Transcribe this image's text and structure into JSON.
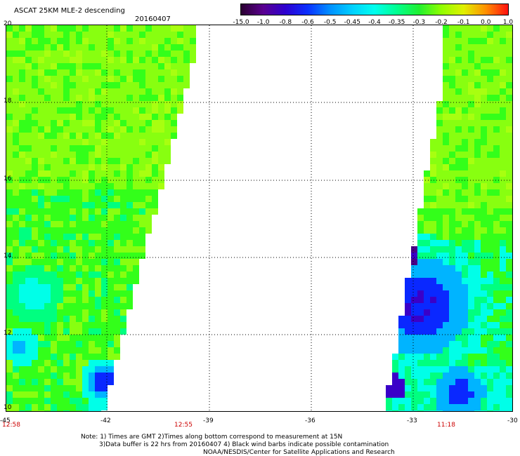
{
  "header": {
    "title": "ASCAT 25KM MLE-2 descending",
    "date": "20160407"
  },
  "colorbar": {
    "ticks": [
      "-15.0",
      "-1.0",
      "-0.8",
      "-0.6",
      "-0.5",
      "-0.45",
      "-0.4",
      "-0.35",
      "-0.3",
      "-0.2",
      "-0.1",
      "0.0",
      "1.0"
    ],
    "colors": [
      "#2a0030",
      "#5a0090",
      "#2d00d0",
      "#0a30ff",
      "#0090ff",
      "#00d0ff",
      "#00ffee",
      "#00ff90",
      "#20f030",
      "#90ff00",
      "#e0f000",
      "#ff9000",
      "#ff1010"
    ]
  },
  "axes": {
    "y_ticks": [
      "20",
      "18",
      "16",
      "14",
      "12",
      "10"
    ],
    "x_ticks": [
      "-45",
      "-42",
      "-39",
      "-36",
      "-33",
      "-30"
    ],
    "lon_range": [
      -45,
      -30
    ],
    "lat_range": [
      10,
      20
    ]
  },
  "swath_times": [
    "12:58",
    "12:55",
    "11:18"
  ],
  "notes": [
    "Note: 1) Times are GMT 2)Times along bottom correspond to measurement at 15N",
    "3)Data buffer is 22 hrs from 20160407 4) Black wind barbs indicate possible contamination",
    "NOAA/NESDIS/Center for Satellite Applications and Research"
  ],
  "palette": {
    "green": "#33ff1a",
    "lime": "#88ff10",
    "mint": "#00ff80",
    "cyan": "#00ffe8",
    "sky": "#00b4ff",
    "blue": "#0a28ff",
    "violet": "#3a00c8",
    "purple": "#4a0088"
  }
}
